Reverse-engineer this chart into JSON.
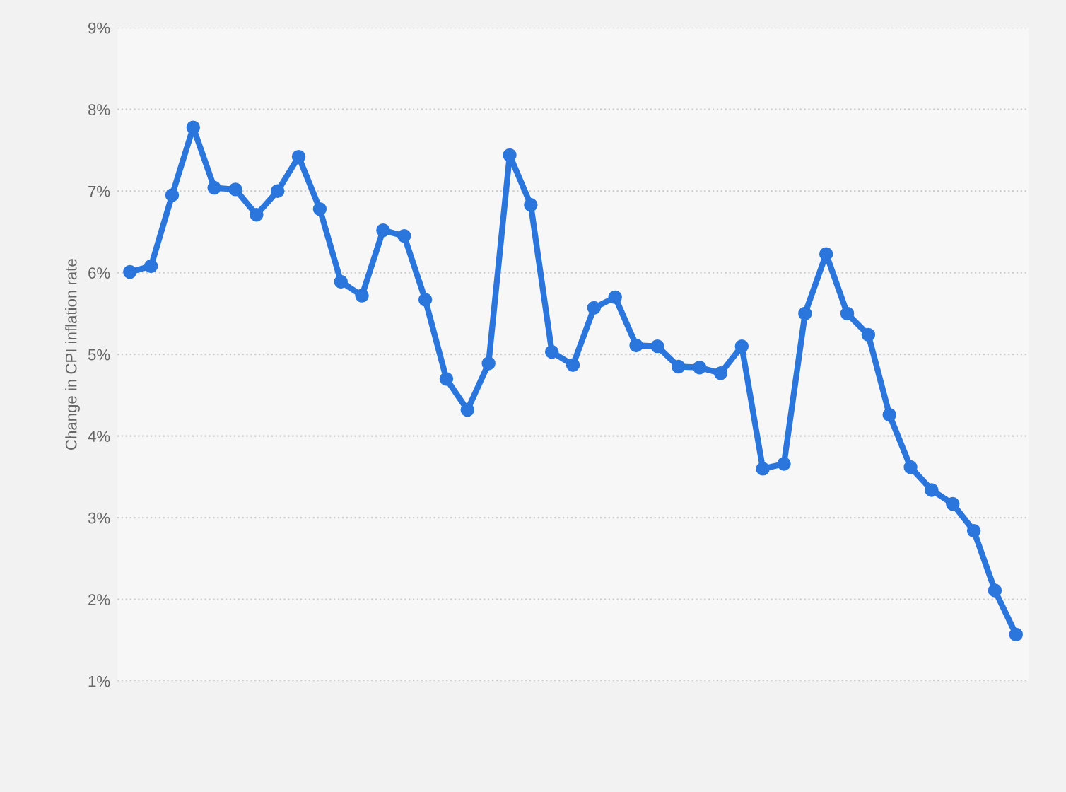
{
  "chart_data": {
    "type": "line",
    "ylabel": "Change in CPI inflation rate",
    "categories": [
      null,
      null,
      null,
      null,
      null,
      null,
      null,
      null,
      null,
      null,
      null,
      null,
      null,
      null,
      null,
      null,
      null,
      null,
      null,
      null,
      null,
      null,
      null,
      null,
      null,
      null,
      null,
      null,
      null,
      null,
      null,
      null,
      null,
      null,
      null,
      null,
      null,
      null,
      null,
      null,
      null,
      null,
      null
    ],
    "series": [
      {
        "color": "#2a76dd",
        "values": [
          6.01,
          6.08,
          6.95,
          7.78,
          7.04,
          7.02,
          6.71,
          7.0,
          7.42,
          6.78,
          5.89,
          5.72,
          6.52,
          6.45,
          5.67,
          4.7,
          4.32,
          4.89,
          7.44,
          6.83,
          5.03,
          4.87,
          5.57,
          5.7,
          5.11,
          5.1,
          4.85,
          4.84,
          4.77,
          5.1,
          3.6,
          3.66,
          5.5,
          6.23,
          5.5,
          5.24,
          4.26,
          3.62,
          3.34,
          3.17,
          2.84,
          2.11,
          1.57
        ]
      }
    ],
    "ylim": [
      1,
      9
    ],
    "yticks": [
      {
        "value": 1,
        "label": "1%"
      },
      {
        "value": 2,
        "label": "2%"
      },
      {
        "value": 3,
        "label": "3%"
      },
      {
        "value": 4,
        "label": "4%"
      },
      {
        "value": 5,
        "label": "5%"
      },
      {
        "value": 6,
        "label": "6%"
      },
      {
        "value": 7,
        "label": "7%"
      },
      {
        "value": 8,
        "label": "8%"
      },
      {
        "value": 9,
        "label": "9%"
      }
    ],
    "grid": "y",
    "marker": "circle",
    "line_style": "solid"
  }
}
